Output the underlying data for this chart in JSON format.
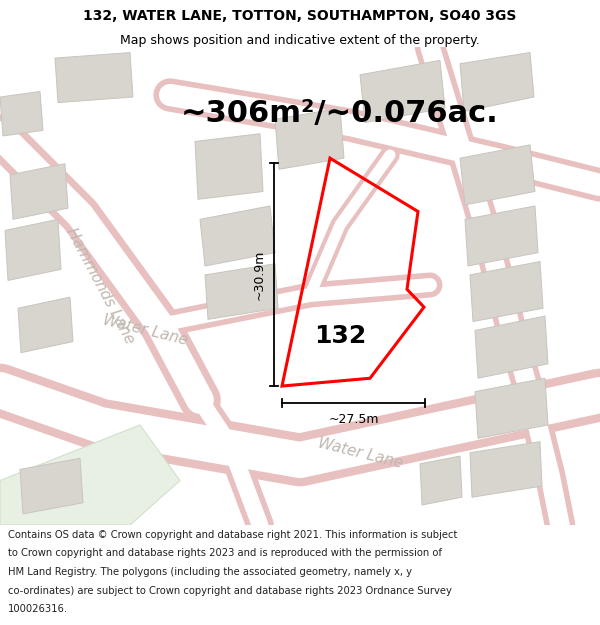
{
  "title_line1": "132, WATER LANE, TOTTON, SOUTHAMPTON, SO40 3GS",
  "title_line2": "Map shows position and indicative extent of the property.",
  "area_text": "~306m²/~0.076ac.",
  "dim_vertical": "~30.9m",
  "dim_horizontal": "~27.5m",
  "label_132": "132",
  "footer_text": "Contains OS data © Crown copyright and database right 2021. This information is subject to Crown copyright and database rights 2023 and is reproduced with the permission of HM Land Registry. The polygons (including the associated geometry, namely x, y co-ordinates) are subject to Crown copyright and database rights 2023 Ordnance Survey 100026316.",
  "map_bg": "#f2eeea",
  "plot_color": "#ff0000",
  "building_fill": "#d8d4ce",
  "building_edge": "#c8c4be",
  "road_fill": "#ffffff",
  "road_edge": "#e8c0c0",
  "road_edge2": "#d8a8a8",
  "green_fill": "#e8f0e4",
  "street_color": "#c0b8b0",
  "dim_color": "#000000",
  "text_color": "#000000",
  "title_fontsize": 10,
  "subtitle_fontsize": 9,
  "area_fontsize": 22,
  "footer_fontsize": 7.2,
  "label_fontsize": 18,
  "dim_fontsize": 9,
  "street_fontsize": 11
}
